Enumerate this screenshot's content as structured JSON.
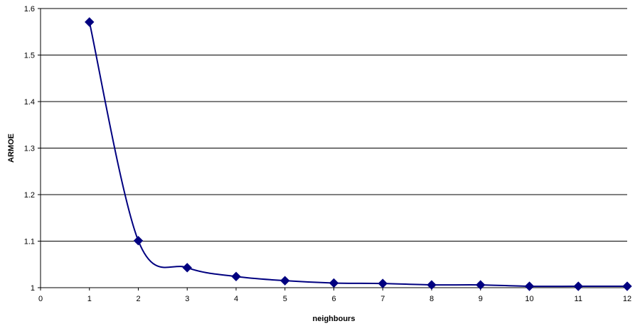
{
  "chart_data": {
    "type": "line",
    "title": "",
    "xlabel": "neighbours",
    "ylabel": "ARMOE",
    "x": [
      1,
      2,
      3,
      4,
      5,
      6,
      7,
      8,
      9,
      10,
      11,
      12
    ],
    "series": [
      {
        "values": [
          1.571,
          1.101,
          1.043,
          1.024,
          1.015,
          1.01,
          1.009,
          1.006,
          1.006,
          1.003,
          1.003,
          1.003
        ],
        "color": "#000080",
        "marker": "diamond"
      }
    ],
    "xlim": [
      0,
      12
    ],
    "ylim": [
      1,
      1.6
    ],
    "xticks": [
      "0",
      "1",
      "2",
      "3",
      "4",
      "5",
      "6",
      "7",
      "8",
      "9",
      "10",
      "11",
      "12"
    ],
    "yticks": [
      "1",
      "1.1",
      "1.2",
      "1.3",
      "1.4",
      "1.5",
      "1.6"
    ],
    "grid": "horizontal",
    "line_style": "smoothed",
    "legend": "none"
  }
}
